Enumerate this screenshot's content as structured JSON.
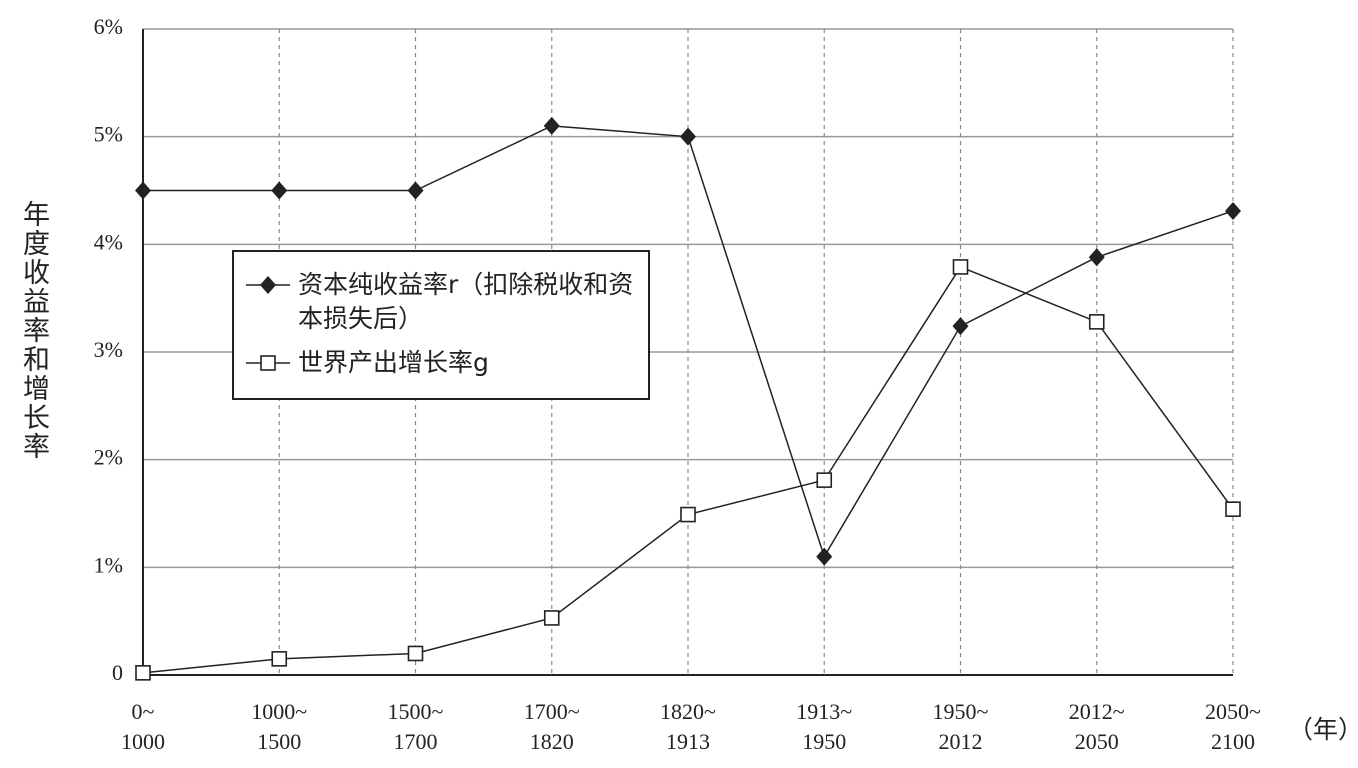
{
  "chart_data": {
    "type": "line",
    "y_label": "年度收益率和增长率",
    "x_label": "（年）",
    "categories": [
      "0~\n1000",
      "1000~\n1500",
      "1500~\n1700",
      "1700~\n1820",
      "1820~\n1913",
      "1913~\n1950",
      "1950~\n2012",
      "2012~\n2050",
      "2050~\n2100"
    ],
    "series": [
      {
        "name": "资本纯收益率r（扣除税收和资本损失后）",
        "color": "#222222",
        "marker": "diamond",
        "values": [
          4.5,
          4.5,
          4.5,
          5.1,
          5.0,
          1.1,
          3.24,
          3.88,
          4.31
        ]
      },
      {
        "name": "世界产出增长率g",
        "color": "#222222",
        "marker": "square",
        "values": [
          0.02,
          0.15,
          0.2,
          0.53,
          1.49,
          1.81,
          3.79,
          3.28,
          1.54
        ]
      }
    ],
    "ylim": [
      0,
      6
    ],
    "yticks": [
      0,
      {
        "value": 1,
        "label": "1%"
      },
      {
        "value": 2,
        "label": "2%"
      },
      {
        "value": 3,
        "label": "3%"
      },
      {
        "value": 4,
        "label": "4%"
      },
      {
        "value": 5,
        "label": "5%"
      },
      {
        "value": 6,
        "label": "6%"
      }
    ],
    "grid": true
  }
}
